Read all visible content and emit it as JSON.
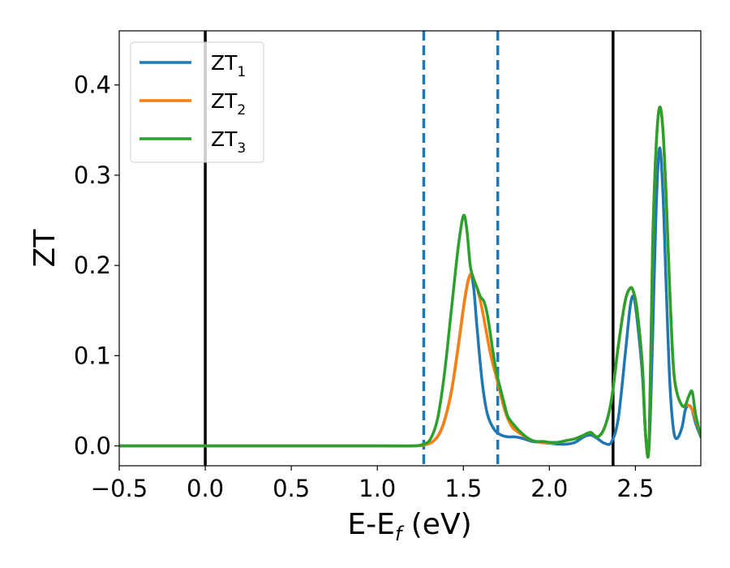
{
  "chart_data": {
    "type": "line",
    "xlabel": "E-E",
    "xlabel_sub": "f",
    "xlabel_unit": " (eV)",
    "ylabel": "ZT",
    "xlim": [
      -0.5,
      2.88
    ],
    "ylim": [
      -0.022,
      0.46
    ],
    "xticks": [
      -0.5,
      0.0,
      0.5,
      1.0,
      1.5,
      2.0,
      2.5
    ],
    "xtick_labels": [
      "−0.5",
      "0.0",
      "0.5",
      "1.0",
      "1.5",
      "2.0",
      "2.5"
    ],
    "yticks": [
      0.0,
      0.1,
      0.2,
      0.3,
      0.4
    ],
    "ytick_labels": [
      "0.0",
      "0.1",
      "0.2",
      "0.3",
      "0.4"
    ],
    "legend_position": "top-left",
    "grid": false,
    "vertical_lines": [
      {
        "x": 0.0,
        "style": "solid",
        "color": "#000000"
      },
      {
        "x": 1.27,
        "style": "dashed",
        "color": "#1f77b4"
      },
      {
        "x": 1.7,
        "style": "dashed",
        "color": "#1f77b4"
      },
      {
        "x": 2.37,
        "style": "solid",
        "color": "#000000"
      }
    ],
    "series": [
      {
        "name": "ZT",
        "name_sub": "1",
        "color": "#1f77b4",
        "points": [
          [
            -0.5,
            0
          ],
          [
            1.0,
            0
          ],
          [
            1.2,
            0
          ],
          [
            1.27,
            0.001
          ],
          [
            1.33,
            0.006
          ],
          [
            1.38,
            0.022
          ],
          [
            1.43,
            0.06
          ],
          [
            1.47,
            0.11
          ],
          [
            1.51,
            0.165
          ],
          [
            1.54,
            0.19
          ],
          [
            1.56,
            0.175
          ],
          [
            1.58,
            0.13
          ],
          [
            1.61,
            0.07
          ],
          [
            1.64,
            0.035
          ],
          [
            1.68,
            0.018
          ],
          [
            1.72,
            0.012
          ],
          [
            1.76,
            0.01
          ],
          [
            1.8,
            0.01
          ],
          [
            1.85,
            0.008
          ],
          [
            1.9,
            0.005
          ],
          [
            1.95,
            0.004
          ],
          [
            2.0,
            0.003
          ],
          [
            2.05,
            0.002
          ],
          [
            2.1,
            0.002
          ],
          [
            2.15,
            0.004
          ],
          [
            2.2,
            0.01
          ],
          [
            2.24,
            0.012
          ],
          [
            2.28,
            0.008
          ],
          [
            2.32,
            0.003
          ],
          [
            2.36,
            0.004
          ],
          [
            2.4,
            0.03
          ],
          [
            2.44,
            0.1
          ],
          [
            2.47,
            0.155
          ],
          [
            2.49,
            0.165
          ],
          [
            2.51,
            0.14
          ],
          [
            2.54,
            0.08
          ],
          [
            2.56,
            0.01
          ],
          [
            2.58,
            0.002
          ],
          [
            2.6,
            0.12
          ],
          [
            2.62,
            0.26
          ],
          [
            2.64,
            0.33
          ],
          [
            2.66,
            0.28
          ],
          [
            2.68,
            0.17
          ],
          [
            2.7,
            0.07
          ],
          [
            2.72,
            0.02
          ],
          [
            2.74,
            0.008
          ],
          [
            2.77,
            0.02
          ],
          [
            2.79,
            0.04
          ],
          [
            2.81,
            0.045
          ],
          [
            2.83,
            0.04
          ],
          [
            2.85,
            0.025
          ],
          [
            2.88,
            0.01
          ]
        ]
      },
      {
        "name": "ZT",
        "name_sub": "2",
        "color": "#ff7f0e",
        "points": [
          [
            -0.5,
            0
          ],
          [
            1.0,
            0
          ],
          [
            1.2,
            0
          ],
          [
            1.27,
            0.001
          ],
          [
            1.33,
            0.006
          ],
          [
            1.38,
            0.022
          ],
          [
            1.43,
            0.06
          ],
          [
            1.47,
            0.11
          ],
          [
            1.51,
            0.165
          ],
          [
            1.54,
            0.19
          ],
          [
            1.57,
            0.18
          ],
          [
            1.6,
            0.16
          ],
          [
            1.63,
            0.13
          ],
          [
            1.66,
            0.1
          ],
          [
            1.7,
            0.07
          ],
          [
            1.74,
            0.04
          ],
          [
            1.78,
            0.022
          ],
          [
            1.82,
            0.015
          ],
          [
            1.86,
            0.01
          ],
          [
            1.9,
            0.006
          ],
          [
            1.95,
            0.004
          ],
          [
            2.0,
            0.003
          ],
          [
            2.05,
            0.004
          ],
          [
            2.1,
            0.006
          ],
          [
            2.15,
            0.008
          ],
          [
            2.2,
            0.012
          ],
          [
            2.24,
            0.015
          ],
          [
            2.28,
            0.01
          ],
          [
            2.32,
            0.02
          ],
          [
            2.36,
            0.05
          ],
          [
            2.4,
            0.11
          ],
          [
            2.44,
            0.16
          ],
          [
            2.47,
            0.175
          ],
          [
            2.49,
            0.17
          ],
          [
            2.51,
            0.15
          ],
          [
            2.54,
            0.09
          ],
          [
            2.56,
            0.01
          ],
          [
            2.58,
            0.005
          ],
          [
            2.6,
            0.22
          ],
          [
            2.62,
            0.33
          ],
          [
            2.64,
            0.375
          ],
          [
            2.66,
            0.35
          ],
          [
            2.68,
            0.27
          ],
          [
            2.7,
            0.17
          ],
          [
            2.72,
            0.09
          ],
          [
            2.74,
            0.06
          ],
          [
            2.77,
            0.045
          ],
          [
            2.79,
            0.045
          ],
          [
            2.81,
            0.045
          ],
          [
            2.83,
            0.04
          ],
          [
            2.85,
            0.03
          ],
          [
            2.88,
            0.01
          ]
        ]
      },
      {
        "name": "ZT",
        "name_sub": "3",
        "color": "#2ca02c",
        "points": [
          [
            -0.5,
            0
          ],
          [
            1.0,
            0
          ],
          [
            1.2,
            0
          ],
          [
            1.27,
            0.002
          ],
          [
            1.31,
            0.008
          ],
          [
            1.35,
            0.03
          ],
          [
            1.39,
            0.08
          ],
          [
            1.43,
            0.15
          ],
          [
            1.47,
            0.22
          ],
          [
            1.5,
            0.255
          ],
          [
            1.52,
            0.24
          ],
          [
            1.54,
            0.2
          ],
          [
            1.56,
            0.185
          ],
          [
            1.58,
            0.175
          ],
          [
            1.6,
            0.165
          ],
          [
            1.62,
            0.16
          ],
          [
            1.64,
            0.145
          ],
          [
            1.66,
            0.12
          ],
          [
            1.68,
            0.095
          ],
          [
            1.7,
            0.075
          ],
          [
            1.72,
            0.06
          ],
          [
            1.74,
            0.045
          ],
          [
            1.76,
            0.032
          ],
          [
            1.8,
            0.022
          ],
          [
            1.84,
            0.014
          ],
          [
            1.88,
            0.008
          ],
          [
            1.92,
            0.005
          ],
          [
            1.96,
            0.005
          ],
          [
            2.0,
            0.004
          ],
          [
            2.05,
            0.004
          ],
          [
            2.1,
            0.006
          ],
          [
            2.15,
            0.008
          ],
          [
            2.2,
            0.012
          ],
          [
            2.24,
            0.015
          ],
          [
            2.28,
            0.01
          ],
          [
            2.32,
            0.02
          ],
          [
            2.36,
            0.05
          ],
          [
            2.4,
            0.11
          ],
          [
            2.44,
            0.16
          ],
          [
            2.47,
            0.175
          ],
          [
            2.49,
            0.17
          ],
          [
            2.51,
            0.15
          ],
          [
            2.54,
            0.09
          ],
          [
            2.56,
            0.01
          ],
          [
            2.58,
            0.005
          ],
          [
            2.6,
            0.22
          ],
          [
            2.62,
            0.33
          ],
          [
            2.64,
            0.375
          ],
          [
            2.66,
            0.35
          ],
          [
            2.68,
            0.27
          ],
          [
            2.7,
            0.17
          ],
          [
            2.72,
            0.09
          ],
          [
            2.74,
            0.06
          ],
          [
            2.77,
            0.045
          ],
          [
            2.79,
            0.045
          ],
          [
            2.81,
            0.055
          ],
          [
            2.83,
            0.06
          ],
          [
            2.85,
            0.035
          ],
          [
            2.88,
            0.01
          ]
        ]
      }
    ]
  }
}
